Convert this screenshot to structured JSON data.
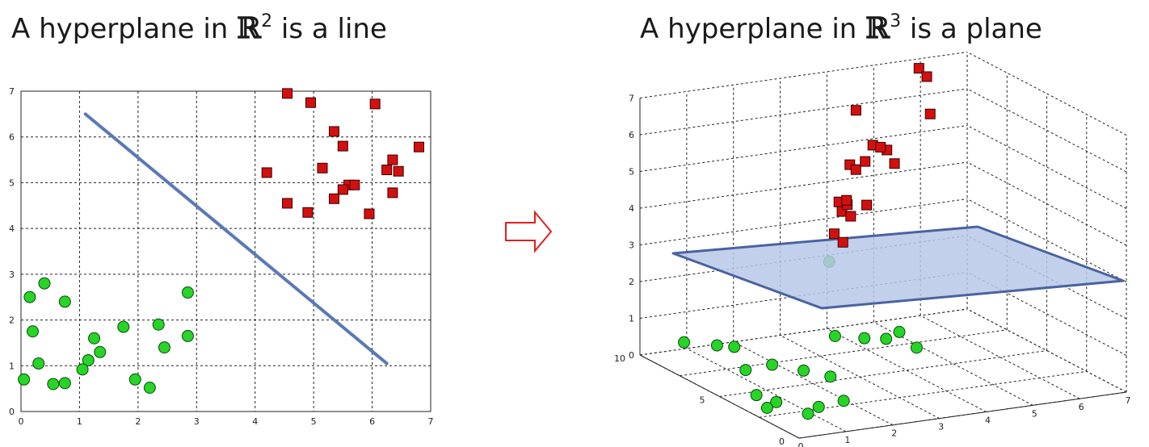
{
  "titles": {
    "left": {
      "prefix": "A hyperplane in ",
      "symbol": "ℝ",
      "exponent": "2",
      "suffix": " is a line"
    },
    "right": {
      "prefix": "A hyperplane in ",
      "symbol": "ℝ",
      "exponent": "3",
      "suffix": " is a plane"
    }
  },
  "arrow_icon": "right-arrow-outline-icon",
  "colors": {
    "class_a": "#d40f0f",
    "class_b": "#27d427",
    "separator": "#5b79b4",
    "plane_fill": "#b8c8e8"
  },
  "chart_data": [
    {
      "type": "scatter",
      "dimensions": 2,
      "xlim": [
        0,
        7
      ],
      "ylim": [
        0,
        7
      ],
      "xticks": [
        "0",
        "1",
        "2",
        "3",
        "4",
        "5",
        "6",
        "7"
      ],
      "yticks": [
        "0",
        "1",
        "2",
        "3",
        "4",
        "5",
        "6",
        "7"
      ],
      "grid": true,
      "series": [
        {
          "marker": "square",
          "color": "#d40f0f",
          "points": [
            [
              4.55,
              6.95
            ],
            [
              4.95,
              6.75
            ],
            [
              6.05,
              6.72
            ],
            [
              5.35,
              6.12
            ],
            [
              5.5,
              5.8
            ],
            [
              6.8,
              5.78
            ],
            [
              6.35,
              5.5
            ],
            [
              5.15,
              5.32
            ],
            [
              6.25,
              5.28
            ],
            [
              6.45,
              5.25
            ],
            [
              4.2,
              5.22
            ],
            [
              5.6,
              4.95
            ],
            [
              5.7,
              4.95
            ],
            [
              5.5,
              4.85
            ],
            [
              6.35,
              4.78
            ],
            [
              5.35,
              4.65
            ],
            [
              4.55,
              4.55
            ],
            [
              4.9,
              4.35
            ],
            [
              5.95,
              4.32
            ]
          ]
        },
        {
          "marker": "circle",
          "color": "#27d427",
          "points": [
            [
              0.4,
              2.8
            ],
            [
              0.15,
              2.5
            ],
            [
              0.75,
              2.4
            ],
            [
              2.85,
              2.6
            ],
            [
              0.2,
              1.75
            ],
            [
              1.75,
              1.85
            ],
            [
              2.35,
              1.9
            ],
            [
              1.25,
              1.6
            ],
            [
              2.85,
              1.65
            ],
            [
              2.45,
              1.4
            ],
            [
              1.35,
              1.3
            ],
            [
              1.15,
              1.12
            ],
            [
              0.3,
              1.05
            ],
            [
              1.05,
              0.92
            ],
            [
              0.05,
              0.7
            ],
            [
              1.95,
              0.7
            ],
            [
              0.75,
              0.62
            ],
            [
              0.55,
              0.6
            ],
            [
              2.2,
              0.52
            ]
          ]
        }
      ],
      "separator_line": [
        [
          1.1,
          6.5
        ],
        [
          6.25,
          1.05
        ]
      ]
    },
    {
      "type": "scatter",
      "dimensions": 3,
      "xlim": [
        0,
        7
      ],
      "ylim": [
        0,
        10
      ],
      "zlim": [
        0,
        7
      ],
      "xticks": [
        "0",
        "1",
        "2",
        "3",
        "4",
        "5",
        "6",
        "7"
      ],
      "yticks": [
        "0",
        "5",
        "10"
      ],
      "zticks": [
        "0",
        "1",
        "2",
        "3",
        "4",
        "5",
        "6",
        "7"
      ],
      "grid": true,
      "series": [
        {
          "marker": "square",
          "color": "#d40f0f"
        },
        {
          "marker": "circle",
          "color": "#27d427"
        }
      ],
      "separating_plane": true
    }
  ]
}
